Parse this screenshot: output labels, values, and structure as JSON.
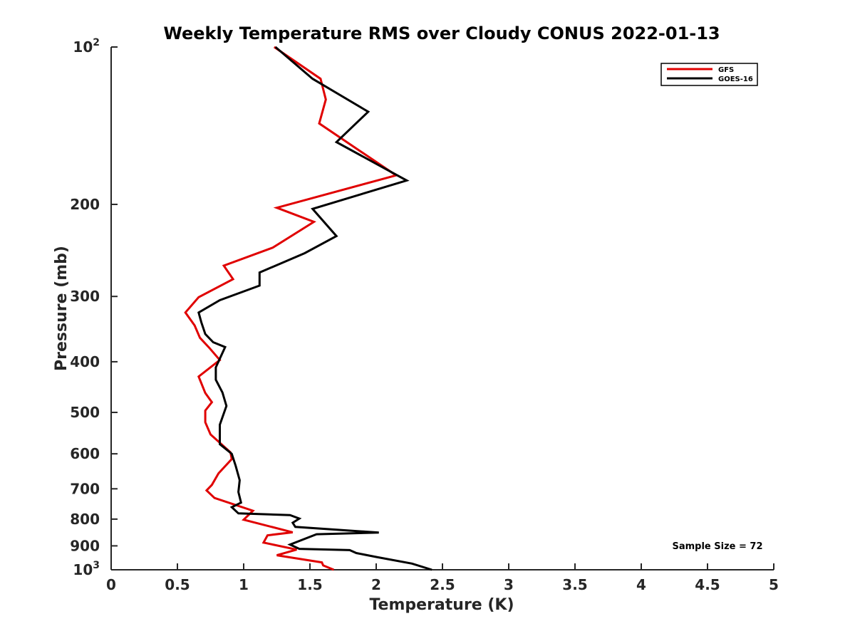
{
  "chart_data": {
    "type": "line",
    "title": "Weekly Temperature RMS over Cloudy CONUS 2022-01-13",
    "xlabel": "Temperature (K)",
    "ylabel": "Pressure (mb)",
    "xlim": [
      0,
      5
    ],
    "ylim": [
      100,
      1000
    ],
    "y_scale": "log",
    "y_reversed": true,
    "x_ticks": [
      0,
      0.5,
      1,
      1.5,
      2,
      2.5,
      3,
      3.5,
      4,
      4.5,
      5
    ],
    "x_tick_labels": [
      "0",
      "0.5",
      "1",
      "1.5",
      "2",
      "2.5",
      "3",
      "3.5",
      "4",
      "4.5",
      "5"
    ],
    "y_ticks": [
      100,
      200,
      300,
      400,
      500,
      600,
      700,
      800,
      900,
      1000
    ],
    "y_tick_labels": [
      {
        "base": "10",
        "exp": "2"
      },
      {
        "base": "200",
        "exp": ""
      },
      {
        "base": "300",
        "exp": ""
      },
      {
        "base": "400",
        "exp": ""
      },
      {
        "base": "500",
        "exp": ""
      },
      {
        "base": "600",
        "exp": ""
      },
      {
        "base": "700",
        "exp": ""
      },
      {
        "base": "800",
        "exp": ""
      },
      {
        "base": "900",
        "exp": ""
      },
      {
        "base": "10",
        "exp": "3"
      }
    ],
    "grid": false,
    "legend_position": "top-right",
    "annotation": "Sample Size = 72",
    "series": [
      {
        "name": "GFS",
        "color": "#e00000",
        "temperature": [
          1.23,
          1.58,
          1.62,
          1.57,
          2.15,
          1.25,
          1.53,
          1.22,
          0.85,
          0.92,
          0.66,
          0.56,
          0.63,
          0.67,
          0.74,
          0.82,
          0.66,
          0.71,
          0.76,
          0.71,
          0.71,
          0.75,
          0.9,
          0.91,
          0.81,
          0.76,
          0.72,
          0.78,
          1.07,
          1.0,
          1.37,
          1.18,
          1.15,
          1.4,
          1.25,
          1.59,
          1.6,
          1.68
        ],
        "pressure": [
          100,
          115,
          126,
          140,
          176,
          203,
          216,
          242,
          262,
          278,
          301,
          322,
          341,
          360,
          376,
          397,
          427,
          459,
          478,
          496,
          522,
          551,
          596,
          614,
          654,
          688,
          705,
          729,
          771,
          802,
          848,
          859,
          887,
          915,
          938,
          968,
          981,
          1000
        ]
      },
      {
        "name": "GOES-16",
        "color": "#000000",
        "temperature": [
          1.24,
          1.52,
          1.94,
          1.7,
          2.23,
          1.52,
          1.7,
          1.46,
          1.12,
          1.12,
          0.82,
          0.66,
          0.68,
          0.71,
          0.77,
          0.86,
          0.79,
          0.79,
          0.84,
          0.87,
          0.82,
          0.82,
          0.91,
          0.94,
          0.97,
          0.96,
          0.98,
          0.91,
          0.96,
          1.35,
          1.42,
          1.37,
          1.39,
          2.02,
          1.55,
          1.35,
          1.42,
          1.8,
          1.85,
          2.0,
          2.27,
          2.42
        ],
        "pressure": [
          100,
          115,
          133,
          152,
          180,
          204,
          230,
          248,
          270,
          286,
          305,
          322,
          336,
          354,
          367,
          375,
          410,
          433,
          458,
          486,
          528,
          575,
          600,
          633,
          674,
          710,
          744,
          759,
          780,
          786,
          798,
          813,
          828,
          849,
          855,
          895,
          912,
          917,
          929,
          945,
          973,
          1000
        ]
      }
    ]
  }
}
